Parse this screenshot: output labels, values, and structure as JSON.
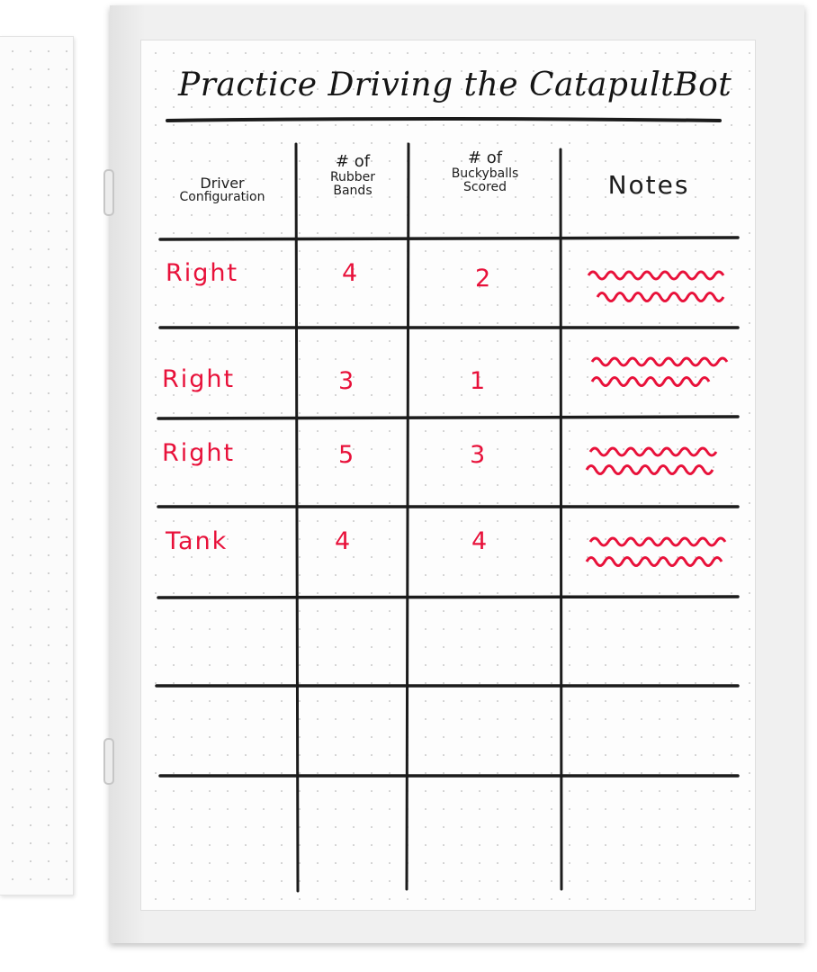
{
  "page": {
    "title": "Practice Driving the CatapultBot"
  },
  "table": {
    "headers": {
      "driver_line1": "Driver",
      "driver_line2": "Configuration",
      "bands_line1": "# of",
      "bands_line2": "Rubber",
      "bands_line3": "Bands",
      "balls_line1": "# of",
      "balls_line2": "Buckyballs",
      "balls_line3": "Scored",
      "notes": "Notes"
    },
    "rows": [
      {
        "driver": "Right",
        "bands": "4",
        "balls": "2"
      },
      {
        "driver": "Right",
        "bands": "3",
        "balls": "1"
      },
      {
        "driver": "Right",
        "bands": "5",
        "balls": "3"
      },
      {
        "driver": "Tank",
        "bands": "4",
        "balls": "4"
      }
    ]
  },
  "colors": {
    "ink": "#1b1b1b",
    "marker_red": "#e8113a",
    "paper": "#fdfdfd"
  }
}
